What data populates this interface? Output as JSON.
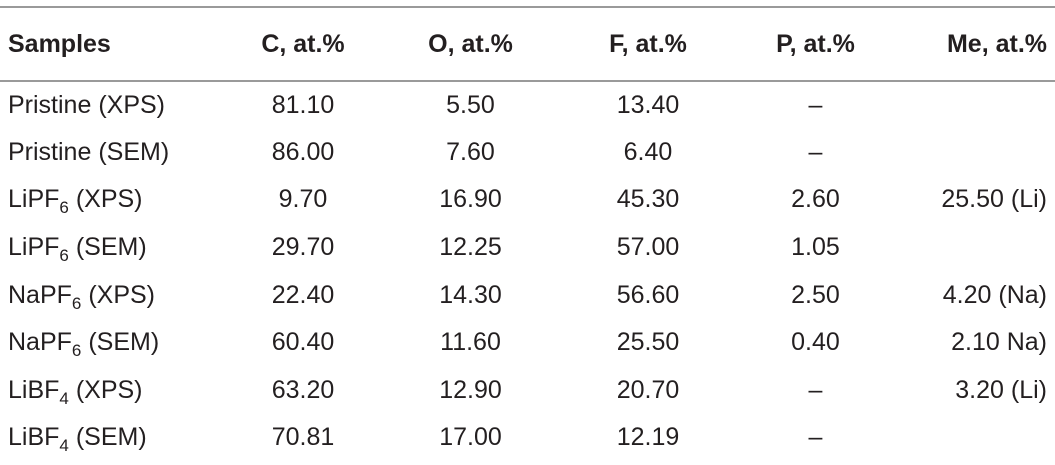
{
  "table": {
    "headers": {
      "samples": "Samples",
      "c": "C, at.%",
      "o": "O, at.%",
      "f": "F, at.%",
      "p": "P, at.%",
      "me": "Me, at.%"
    },
    "rows": [
      {
        "sample_base": "Pristine",
        "sample_sub": "",
        "sample_method": " (XPS)",
        "c": "81.10",
        "o": "5.50",
        "f": "13.40",
        "p": "–",
        "me": ""
      },
      {
        "sample_base": "Pristine",
        "sample_sub": "",
        "sample_method": " (SEM)",
        "c": "86.00",
        "o": "7.60",
        "f": "6.40",
        "p": "–",
        "me": ""
      },
      {
        "sample_base": "LiPF",
        "sample_sub": "6",
        "sample_method": " (XPS)",
        "c": "9.70",
        "o": "16.90",
        "f": "45.30",
        "p": "2.60",
        "me": "25.50 (Li)"
      },
      {
        "sample_base": "LiPF",
        "sample_sub": "6",
        "sample_method": " (SEM)",
        "c": "29.70",
        "o": "12.25",
        "f": "57.00",
        "p": "1.05",
        "me": ""
      },
      {
        "sample_base": "NaPF",
        "sample_sub": "6",
        "sample_method": " (XPS)",
        "c": "22.40",
        "o": "14.30",
        "f": "56.60",
        "p": "2.50",
        "me": "4.20 (Na)"
      },
      {
        "sample_base": "NaPF",
        "sample_sub": "6",
        "sample_method": " (SEM)",
        "c": "60.40",
        "o": "11.60",
        "f": "25.50",
        "p": "0.40",
        "me": "2.10 Na)"
      },
      {
        "sample_base": "LiBF",
        "sample_sub": "4",
        "sample_method": " (XPS)",
        "c": "63.20",
        "o": "12.90",
        "f": "20.70",
        "p": "–",
        "me": "3.20 (Li)"
      },
      {
        "sample_base": "LiBF",
        "sample_sub": "4",
        "sample_method": " (SEM)",
        "c": "70.81",
        "o": "17.00",
        "f": "12.19",
        "p": "–",
        "me": ""
      }
    ]
  }
}
